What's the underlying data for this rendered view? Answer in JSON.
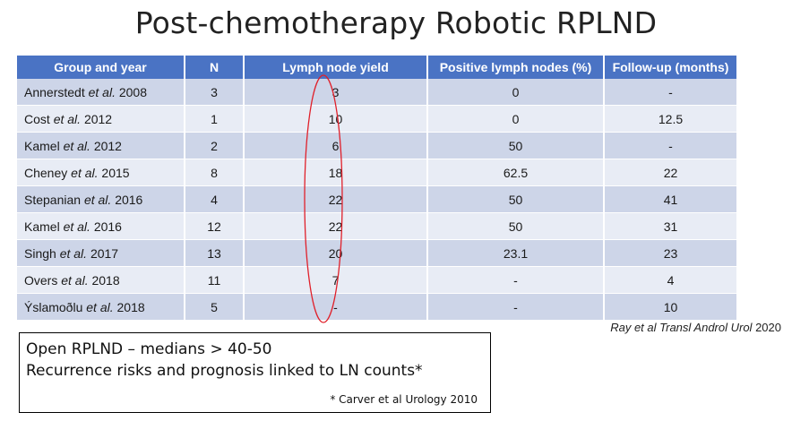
{
  "title": "Post-chemotherapy Robotic RPLND",
  "table": {
    "headers": [
      "Group and year",
      "N",
      "Lymph node yield",
      "Positive lymph nodes (%)",
      "Follow-up (months)"
    ],
    "rows": [
      {
        "author": "Annerstedt",
        "etal": "et al.",
        "year": "2008",
        "n": "3",
        "yield": "3",
        "positive": "0",
        "followup": "-"
      },
      {
        "author": "Cost",
        "etal": "et al.",
        "year": "2012",
        "n": "1",
        "yield": "10",
        "positive": "0",
        "followup": "12.5"
      },
      {
        "author": "Kamel",
        "etal": "et al.",
        "year": "2012",
        "n": "2",
        "yield": "6",
        "positive": "50",
        "followup": "-"
      },
      {
        "author": "Cheney",
        "etal": "et al.",
        "year": "2015",
        "n": "8",
        "yield": "18",
        "positive": "62.5",
        "followup": "22"
      },
      {
        "author": "Stepanian",
        "etal": "et al.",
        "year": "2016",
        "n": "4",
        "yield": "22",
        "positive": "50",
        "followup": "41"
      },
      {
        "author": "Kamel",
        "etal": "et al.",
        "year": "2016",
        "n": "12",
        "yield": "22",
        "positive": "50",
        "followup": "31"
      },
      {
        "author": "Singh",
        "etal": "et al.",
        "year": "2017",
        "n": "13",
        "yield": "20",
        "positive": "23.1",
        "followup": "23"
      },
      {
        "author": "Overs",
        "etal": "et al.",
        "year": "2018",
        "n": "11",
        "yield": "7",
        "positive": "-",
        "followup": "4"
      },
      {
        "author": "Ýslamoðlu",
        "etal": "et al.",
        "year": "2018",
        "n": "5",
        "yield": "-",
        "positive": "-",
        "followup": "10"
      }
    ]
  },
  "citation": {
    "text": "Ray et al Transl Androl Urol",
    "year": "2020"
  },
  "note_box": {
    "line1": "Open RPLND – medians > 40-50",
    "line2": "Recurrence risks and prognosis linked to LN counts*",
    "reference": "* Carver et al Urology 2010"
  },
  "colors": {
    "header_bg": "#4a73c4",
    "row_odd": "#cdd5e8",
    "row_even": "#e8ecf5",
    "annotation": "#e0202a"
  },
  "annotation": {
    "shape": "ellipse",
    "highlighted_column": "Lymph node yield"
  }
}
